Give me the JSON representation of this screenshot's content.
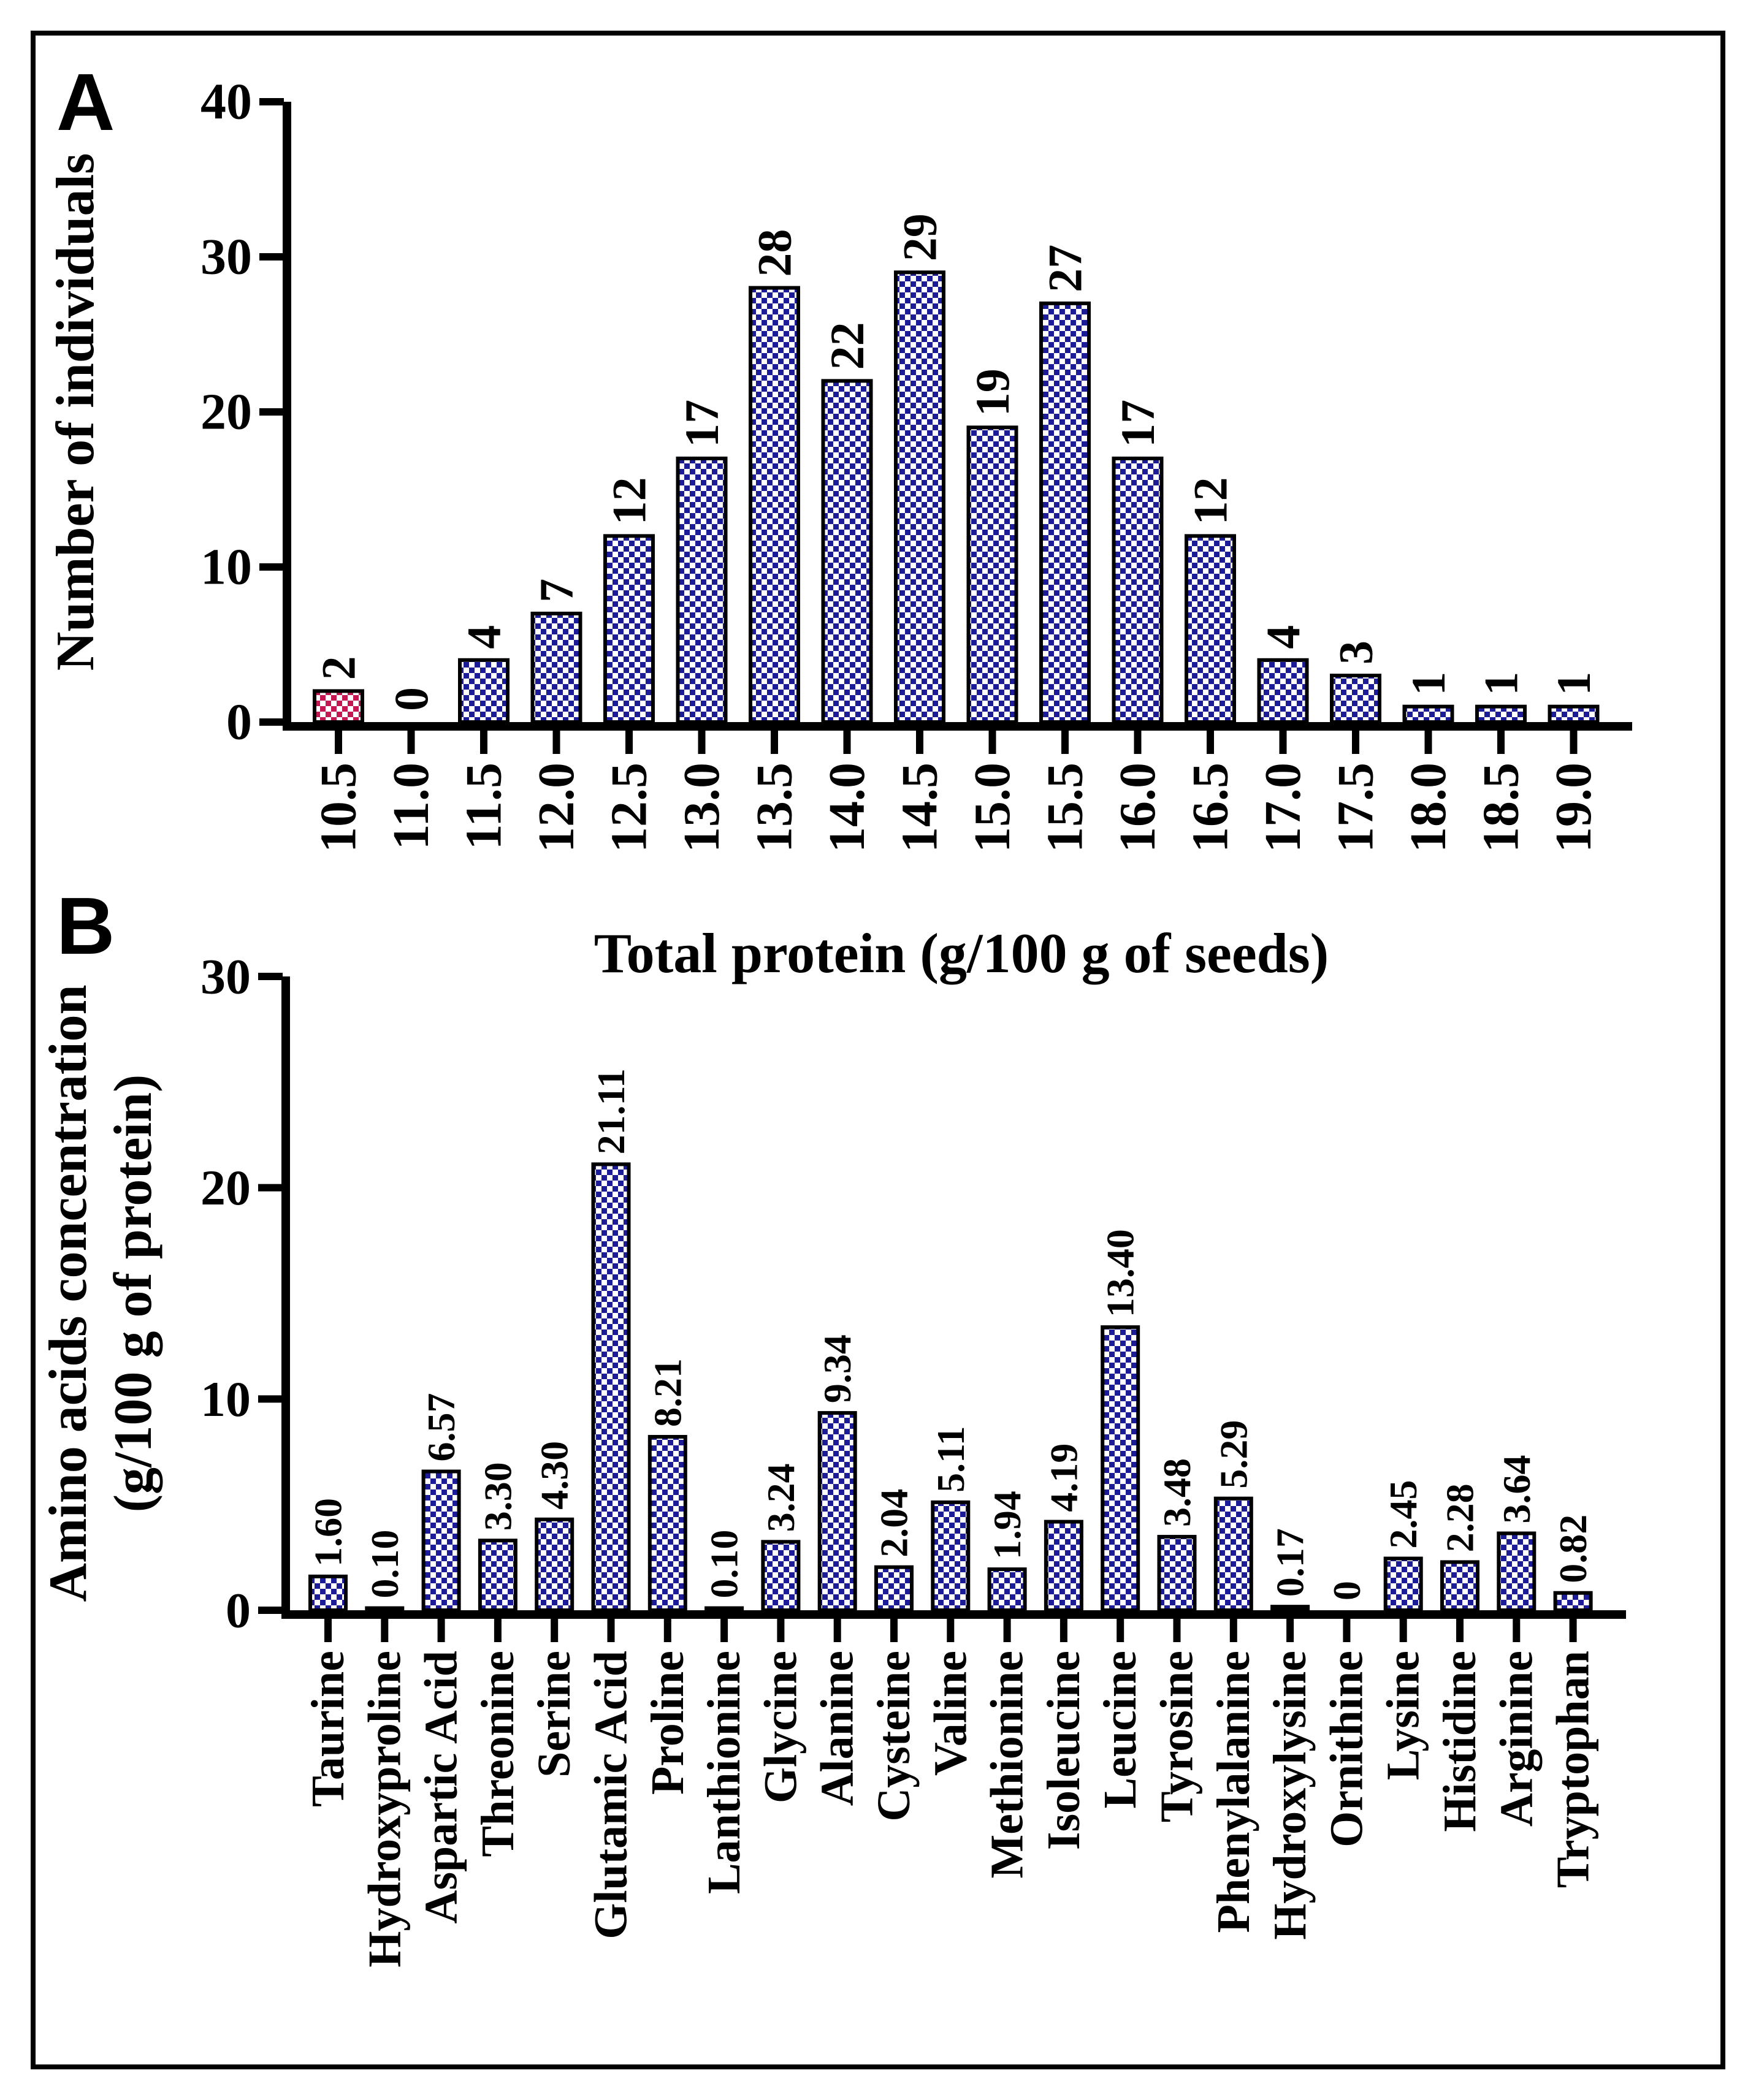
{
  "figure": {
    "border_color": "#000000",
    "background": "#ffffff",
    "panel_labels": [
      "A",
      "B"
    ]
  },
  "chart_data": [
    {
      "type": "bar",
      "panel_label": "A",
      "xlabel": "Total protein (g/100 g of seeds)",
      "ylabel": "Number of individuals",
      "ylim": [
        0,
        40
      ],
      "yticks": [
        0,
        10,
        20,
        30,
        40
      ],
      "grid": false,
      "legend": null,
      "categories": [
        "10.5",
        "11.0",
        "11.5",
        "12.0",
        "12.5",
        "13.0",
        "13.5",
        "14.0",
        "14.5",
        "15.0",
        "15.5",
        "16.0",
        "16.5",
        "17.0",
        "17.5",
        "18.0",
        "18.5",
        "19.0"
      ],
      "values": [
        2,
        0,
        4,
        7,
        12,
        17,
        28,
        22,
        29,
        19,
        27,
        17,
        12,
        4,
        3,
        1,
        1,
        1
      ],
      "bar_labels": [
        "2",
        "0",
        "4",
        "7",
        "12",
        "17",
        "28",
        "22",
        "29",
        "19",
        "27",
        "17",
        "12",
        "4",
        "3",
        "1",
        "1",
        "1"
      ],
      "bar_pattern": "blue-checkerboard",
      "highlight": {
        "index": 0,
        "pattern": "red-checkerboard"
      },
      "colors": {
        "bar": "#1c1c96",
        "highlight": "#c31852",
        "axis": "#000000"
      }
    },
    {
      "type": "bar",
      "panel_label": "B",
      "xlabel": "",
      "ylabel": "Amino acids concentration",
      "ylabel_line2": "(g/100 g of protein)",
      "ylim": [
        0,
        30
      ],
      "yticks": [
        0,
        10,
        20,
        30
      ],
      "grid": false,
      "legend": null,
      "categories": [
        "Taurine",
        "Hydroxyproline",
        "Aspartic Acid",
        "Threonine",
        "Serine",
        "Glutamic Acid",
        "Proline",
        "Lanthionine",
        "Glycine",
        "Alanine",
        "Cysteine",
        "Valine",
        "Methionine",
        "Isoleucine",
        "Leucine",
        "Tyrosine",
        "Phenylalanine",
        "Hydroxylysine",
        "Ornithine",
        "Lysine",
        "Histidine",
        "Arginine",
        "Tryptophan"
      ],
      "values": [
        1.6,
        0.1,
        6.57,
        3.3,
        4.3,
        21.11,
        8.21,
        0.1,
        3.24,
        9.34,
        2.04,
        5.11,
        1.94,
        4.19,
        13.4,
        3.48,
        5.29,
        0.17,
        0,
        2.45,
        2.28,
        3.64,
        0.82
      ],
      "bar_labels": [
        "1.60",
        "0.10",
        "6.57",
        "3.30",
        "4.30",
        "21.11",
        "8.21",
        "0.10",
        "3.24",
        "9.34",
        "2.04",
        "5.11",
        "1.94",
        "4.19",
        "13.40",
        "3.48",
        "5.29",
        "0.17",
        "0",
        "2.45",
        "2.28",
        "3.64",
        "0.82"
      ],
      "bar_pattern": "blue-checkerboard",
      "highlight": null,
      "colors": {
        "bar": "#1c1c96",
        "highlight": "#c31852",
        "axis": "#000000"
      }
    }
  ]
}
